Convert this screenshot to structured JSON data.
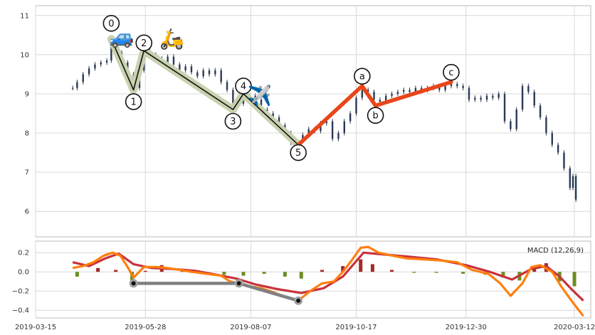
{
  "colors": {
    "panel_bg": "#ffffff",
    "grid": "#d8d8d8",
    "frame": "#bbbbbb",
    "candle": "#2b3a55",
    "impulse_halo": "#c8d2b0",
    "impulse_line": "#111111",
    "corrective": "#e8461a",
    "hist_pos": "#a52a2a",
    "hist_neg": "#6b8e23",
    "macd_line": "#ff7f0e",
    "signal_line": "#c8323c",
    "divergence": "#808080"
  },
  "icons": [
    "car-icon",
    "scooter-icon",
    "airplane-icon"
  ],
  "chart_data": [
    {
      "type": "candlestick",
      "title": "",
      "xlabel": "",
      "ylabel": "",
      "ylim": [
        5.35,
        11.25
      ],
      "yticks": [
        "6",
        "7",
        "8",
        "9",
        "10",
        "11"
      ],
      "grid": true,
      "close_series": [
        [
          "2019-04-09",
          9.15
        ],
        [
          "2019-04-12",
          9.3
        ],
        [
          "2019-04-16",
          9.5
        ],
        [
          "2019-04-20",
          9.65
        ],
        [
          "2019-04-24",
          9.75
        ],
        [
          "2019-04-28",
          9.8
        ],
        [
          "2019-05-02",
          9.85
        ],
        [
          "2019-05-05",
          10.35
        ],
        [
          "2019-05-09",
          10.05
        ],
        [
          "2019-05-12",
          9.8
        ],
        [
          "2019-05-16",
          9.5
        ],
        [
          "2019-05-20",
          9.15
        ],
        [
          "2019-05-24",
          9.6
        ],
        [
          "2019-05-27",
          10.1
        ],
        [
          "2019-05-31",
          10.0
        ],
        [
          "2019-06-04",
          9.9
        ],
        [
          "2019-06-08",
          9.8
        ],
        [
          "2019-06-12",
          9.95
        ],
        [
          "2019-06-16",
          9.75
        ],
        [
          "2019-06-20",
          9.6
        ],
        [
          "2019-06-24",
          9.7
        ],
        [
          "2019-06-28",
          9.55
        ],
        [
          "2019-07-02",
          9.45
        ],
        [
          "2019-07-06",
          9.6
        ],
        [
          "2019-07-10",
          9.5
        ],
        [
          "2019-07-14",
          9.6
        ],
        [
          "2019-07-18",
          9.3
        ],
        [
          "2019-07-22",
          9.1
        ],
        [
          "2019-07-26",
          8.7
        ],
        [
          "2019-07-29",
          8.75
        ],
        [
          "2019-08-02",
          8.9
        ],
        [
          "2019-08-06",
          8.95
        ],
        [
          "2019-08-10",
          8.85
        ],
        [
          "2019-08-14",
          8.6
        ],
        [
          "2019-08-18",
          8.5
        ],
        [
          "2019-08-22",
          8.4
        ],
        [
          "2019-08-26",
          8.2
        ],
        [
          "2019-08-30",
          8.0
        ],
        [
          "2019-09-03",
          7.75
        ],
        [
          "2019-09-07",
          7.8
        ],
        [
          "2019-09-11",
          7.95
        ],
        [
          "2019-09-15",
          8.1
        ],
        [
          "2019-09-19",
          8.05
        ],
        [
          "2019-09-23",
          8.25
        ],
        [
          "2019-09-27",
          8.3
        ],
        [
          "2019-10-01",
          7.85
        ],
        [
          "2019-10-05",
          8.0
        ],
        [
          "2019-10-09",
          8.3
        ],
        [
          "2019-10-13",
          8.5
        ],
        [
          "2019-10-17",
          8.9
        ],
        [
          "2019-10-21",
          9.1
        ],
        [
          "2019-10-25",
          9.05
        ],
        [
          "2019-10-29",
          8.85
        ],
        [
          "2019-11-02",
          8.8
        ],
        [
          "2019-11-06",
          8.95
        ],
        [
          "2019-11-10",
          9.0
        ],
        [
          "2019-11-14",
          9.05
        ],
        [
          "2019-11-18",
          9.1
        ],
        [
          "2019-11-22",
          9.05
        ],
        [
          "2019-11-26",
          9.15
        ],
        [
          "2019-11-30",
          9.1
        ],
        [
          "2019-12-04",
          9.15
        ],
        [
          "2019-12-08",
          9.2
        ],
        [
          "2019-12-12",
          9.1
        ],
        [
          "2019-12-16",
          9.2
        ],
        [
          "2019-12-20",
          9.25
        ],
        [
          "2019-12-24",
          9.2
        ],
        [
          "2019-12-28",
          9.15
        ],
        [
          "2020-01-01",
          8.85
        ],
        [
          "2020-01-05",
          8.9
        ],
        [
          "2020-01-09",
          8.85
        ],
        [
          "2020-01-13",
          8.95
        ],
        [
          "2020-01-17",
          8.9
        ],
        [
          "2020-01-21",
          9.0
        ],
        [
          "2020-01-25",
          8.3
        ],
        [
          "2020-01-29",
          8.1
        ],
        [
          "2020-02-02",
          8.6
        ],
        [
          "2020-02-06",
          9.2
        ],
        [
          "2020-02-10",
          9.05
        ],
        [
          "2020-02-14",
          8.7
        ],
        [
          "2020-02-18",
          8.4
        ],
        [
          "2020-02-22",
          8.0
        ],
        [
          "2020-02-26",
          7.7
        ],
        [
          "2020-03-01",
          7.5
        ],
        [
          "2020-03-05",
          7.1
        ],
        [
          "2020-03-09",
          6.6
        ],
        [
          "2020-03-11",
          6.9
        ],
        [
          "2020-03-13",
          6.3
        ]
      ],
      "wave_points": [
        {
          "label": "0",
          "date": "2019-05-05",
          "price": 10.4,
          "label_price": 10.8,
          "group": "impulse"
        },
        {
          "label": "1",
          "date": "2019-05-20",
          "price": 9.1,
          "label_price": 8.8,
          "group": "impulse"
        },
        {
          "label": "2",
          "date": "2019-05-27",
          "price": 10.1,
          "label_price": 10.3,
          "group": "impulse"
        },
        {
          "label": "3",
          "date": "2019-07-26",
          "price": 8.6,
          "label_price": 8.3,
          "group": "impulse"
        },
        {
          "label": "4",
          "date": "2019-08-02",
          "price": 9.0,
          "label_price": 9.2,
          "group": "impulse"
        },
        {
          "label": "5",
          "date": "2019-09-08",
          "price": 7.7,
          "label_price": 7.5,
          "group": "impulse"
        },
        {
          "label": "a",
          "date": "2019-10-21",
          "price": 9.2,
          "label_price": 9.45,
          "group": "corrective"
        },
        {
          "label": "b",
          "date": "2019-10-30",
          "price": 8.7,
          "label_price": 8.45,
          "group": "corrective"
        },
        {
          "label": "c",
          "date": "2019-12-20",
          "price": 9.3,
          "label_price": 9.55,
          "group": "corrective"
        }
      ],
      "emoji_markers": [
        {
          "icon": "car-icon",
          "glyph": "🚙",
          "date": "2019-05-12",
          "price": 10.5
        },
        {
          "icon": "scooter-icon",
          "glyph": "🛵",
          "date": "2019-06-15",
          "price": 10.45
        },
        {
          "icon": "airplane-icon",
          "glyph": "✈️",
          "date": "2019-08-13",
          "price": 9.0
        }
      ]
    },
    {
      "type": "macd",
      "title": "",
      "legend": "MACD (12,26,9)",
      "legend_placement": "top-right",
      "ylim": [
        -0.48,
        0.32
      ],
      "yticks": [
        "0.2",
        "0.0",
        "−0.2",
        "−0.4"
      ],
      "xticks": [
        "2019-03-15",
        "2019-05-28",
        "2019-08-07",
        "2019-10-17",
        "2019-12-30",
        "2020-03-12"
      ],
      "xlim": [
        "2019-03-15",
        "2020-03-23"
      ],
      "macd": [
        [
          "2019-04-09",
          0.04
        ],
        [
          "2019-04-16",
          0.06
        ],
        [
          "2019-04-23",
          0.1
        ],
        [
          "2019-04-30",
          0.17
        ],
        [
          "2019-05-06",
          0.2
        ],
        [
          "2019-05-11",
          0.17
        ],
        [
          "2019-05-16",
          0.05
        ],
        [
          "2019-05-20",
          -0.06
        ],
        [
          "2019-05-27",
          0.05
        ],
        [
          "2019-06-04",
          0.05
        ],
        [
          "2019-06-12",
          0.04
        ],
        [
          "2019-06-20",
          0.02
        ],
        [
          "2019-06-28",
          0.0
        ],
        [
          "2019-07-08",
          -0.02
        ],
        [
          "2019-07-18",
          -0.04
        ],
        [
          "2019-07-24",
          -0.1
        ],
        [
          "2019-07-30",
          -0.12
        ],
        [
          "2019-08-06",
          -0.15
        ],
        [
          "2019-08-14",
          -0.17
        ],
        [
          "2019-08-22",
          -0.21
        ],
        [
          "2019-08-30",
          -0.26
        ],
        [
          "2019-09-08",
          -0.3
        ],
        [
          "2019-09-16",
          -0.2
        ],
        [
          "2019-09-24",
          -0.12
        ],
        [
          "2019-10-02",
          -0.1
        ],
        [
          "2019-10-08",
          0.0
        ],
        [
          "2019-10-14",
          0.12
        ],
        [
          "2019-10-20",
          0.25
        ],
        [
          "2019-10-25",
          0.26
        ],
        [
          "2019-11-01",
          0.2
        ],
        [
          "2019-11-10",
          0.17
        ],
        [
          "2019-11-20",
          0.14
        ],
        [
          "2019-12-01",
          0.13
        ],
        [
          "2019-12-12",
          0.12
        ],
        [
          "2019-12-24",
          0.1
        ],
        [
          "2020-01-03",
          0.02
        ],
        [
          "2020-01-14",
          -0.02
        ],
        [
          "2020-01-22",
          -0.12
        ],
        [
          "2020-01-29",
          -0.25
        ],
        [
          "2020-02-06",
          -0.12
        ],
        [
          "2020-02-12",
          0.05
        ],
        [
          "2020-02-18",
          0.07
        ],
        [
          "2020-02-26",
          0.0
        ],
        [
          "2020-03-03",
          -0.15
        ],
        [
          "2020-03-10",
          -0.3
        ],
        [
          "2020-03-14",
          -0.38
        ],
        [
          "2020-03-18",
          -0.46
        ]
      ],
      "signal": [
        [
          "2019-04-09",
          0.1
        ],
        [
          "2019-04-20",
          0.06
        ],
        [
          "2019-05-01",
          0.14
        ],
        [
          "2019-05-10",
          0.19
        ],
        [
          "2019-05-20",
          0.08
        ],
        [
          "2019-06-01",
          0.04
        ],
        [
          "2019-06-15",
          0.03
        ],
        [
          "2019-07-01",
          0.01
        ],
        [
          "2019-07-15",
          -0.03
        ],
        [
          "2019-07-28",
          -0.07
        ],
        [
          "2019-08-10",
          -0.13
        ],
        [
          "2019-08-25",
          -0.18
        ],
        [
          "2019-09-10",
          -0.22
        ],
        [
          "2019-09-25",
          -0.17
        ],
        [
          "2019-10-08",
          -0.05
        ],
        [
          "2019-10-22",
          0.2
        ],
        [
          "2019-11-05",
          0.18
        ],
        [
          "2019-11-20",
          0.16
        ],
        [
          "2019-12-10",
          0.13
        ],
        [
          "2019-12-30",
          0.07
        ],
        [
          "2020-01-15",
          0.0
        ],
        [
          "2020-01-30",
          -0.08
        ],
        [
          "2020-02-12",
          0.03
        ],
        [
          "2020-02-22",
          0.06
        ],
        [
          "2020-03-02",
          -0.05
        ],
        [
          "2020-03-10",
          -0.18
        ],
        [
          "2020-03-18",
          -0.3
        ]
      ],
      "histogram": [
        [
          "2019-04-12",
          -0.05
        ],
        [
          "2019-04-26",
          0.04
        ],
        [
          "2019-05-08",
          0.02
        ],
        [
          "2019-05-19",
          -0.12
        ],
        [
          "2019-05-28",
          0.01
        ],
        [
          "2019-06-08",
          0.07
        ],
        [
          "2019-06-22",
          0.02
        ],
        [
          "2019-07-06",
          -0.01
        ],
        [
          "2019-07-20",
          -0.03
        ],
        [
          "2019-08-02",
          -0.04
        ],
        [
          "2019-08-16",
          -0.02
        ],
        [
          "2019-08-30",
          -0.05
        ],
        [
          "2019-09-10",
          -0.07
        ],
        [
          "2019-09-24",
          0.02
        ],
        [
          "2019-10-08",
          0.06
        ],
        [
          "2019-10-20",
          0.13
        ],
        [
          "2019-10-28",
          0.08
        ],
        [
          "2019-11-10",
          0.02
        ],
        [
          "2019-11-25",
          -0.01
        ],
        [
          "2019-12-10",
          -0.01
        ],
        [
          "2019-12-28",
          -0.02
        ],
        [
          "2020-01-12",
          -0.03
        ],
        [
          "2020-01-24",
          -0.06
        ],
        [
          "2020-02-04",
          -0.09
        ],
        [
          "2020-02-14",
          0.06
        ],
        [
          "2020-02-22",
          0.09
        ],
        [
          "2020-03-02",
          -0.1
        ],
        [
          "2020-03-12",
          -0.15
        ]
      ],
      "divergence_points": [
        [
          "2019-05-20",
          -0.12
        ],
        [
          "2019-07-30",
          -0.12
        ],
        [
          "2019-09-08",
          -0.3
        ]
      ]
    }
  ]
}
